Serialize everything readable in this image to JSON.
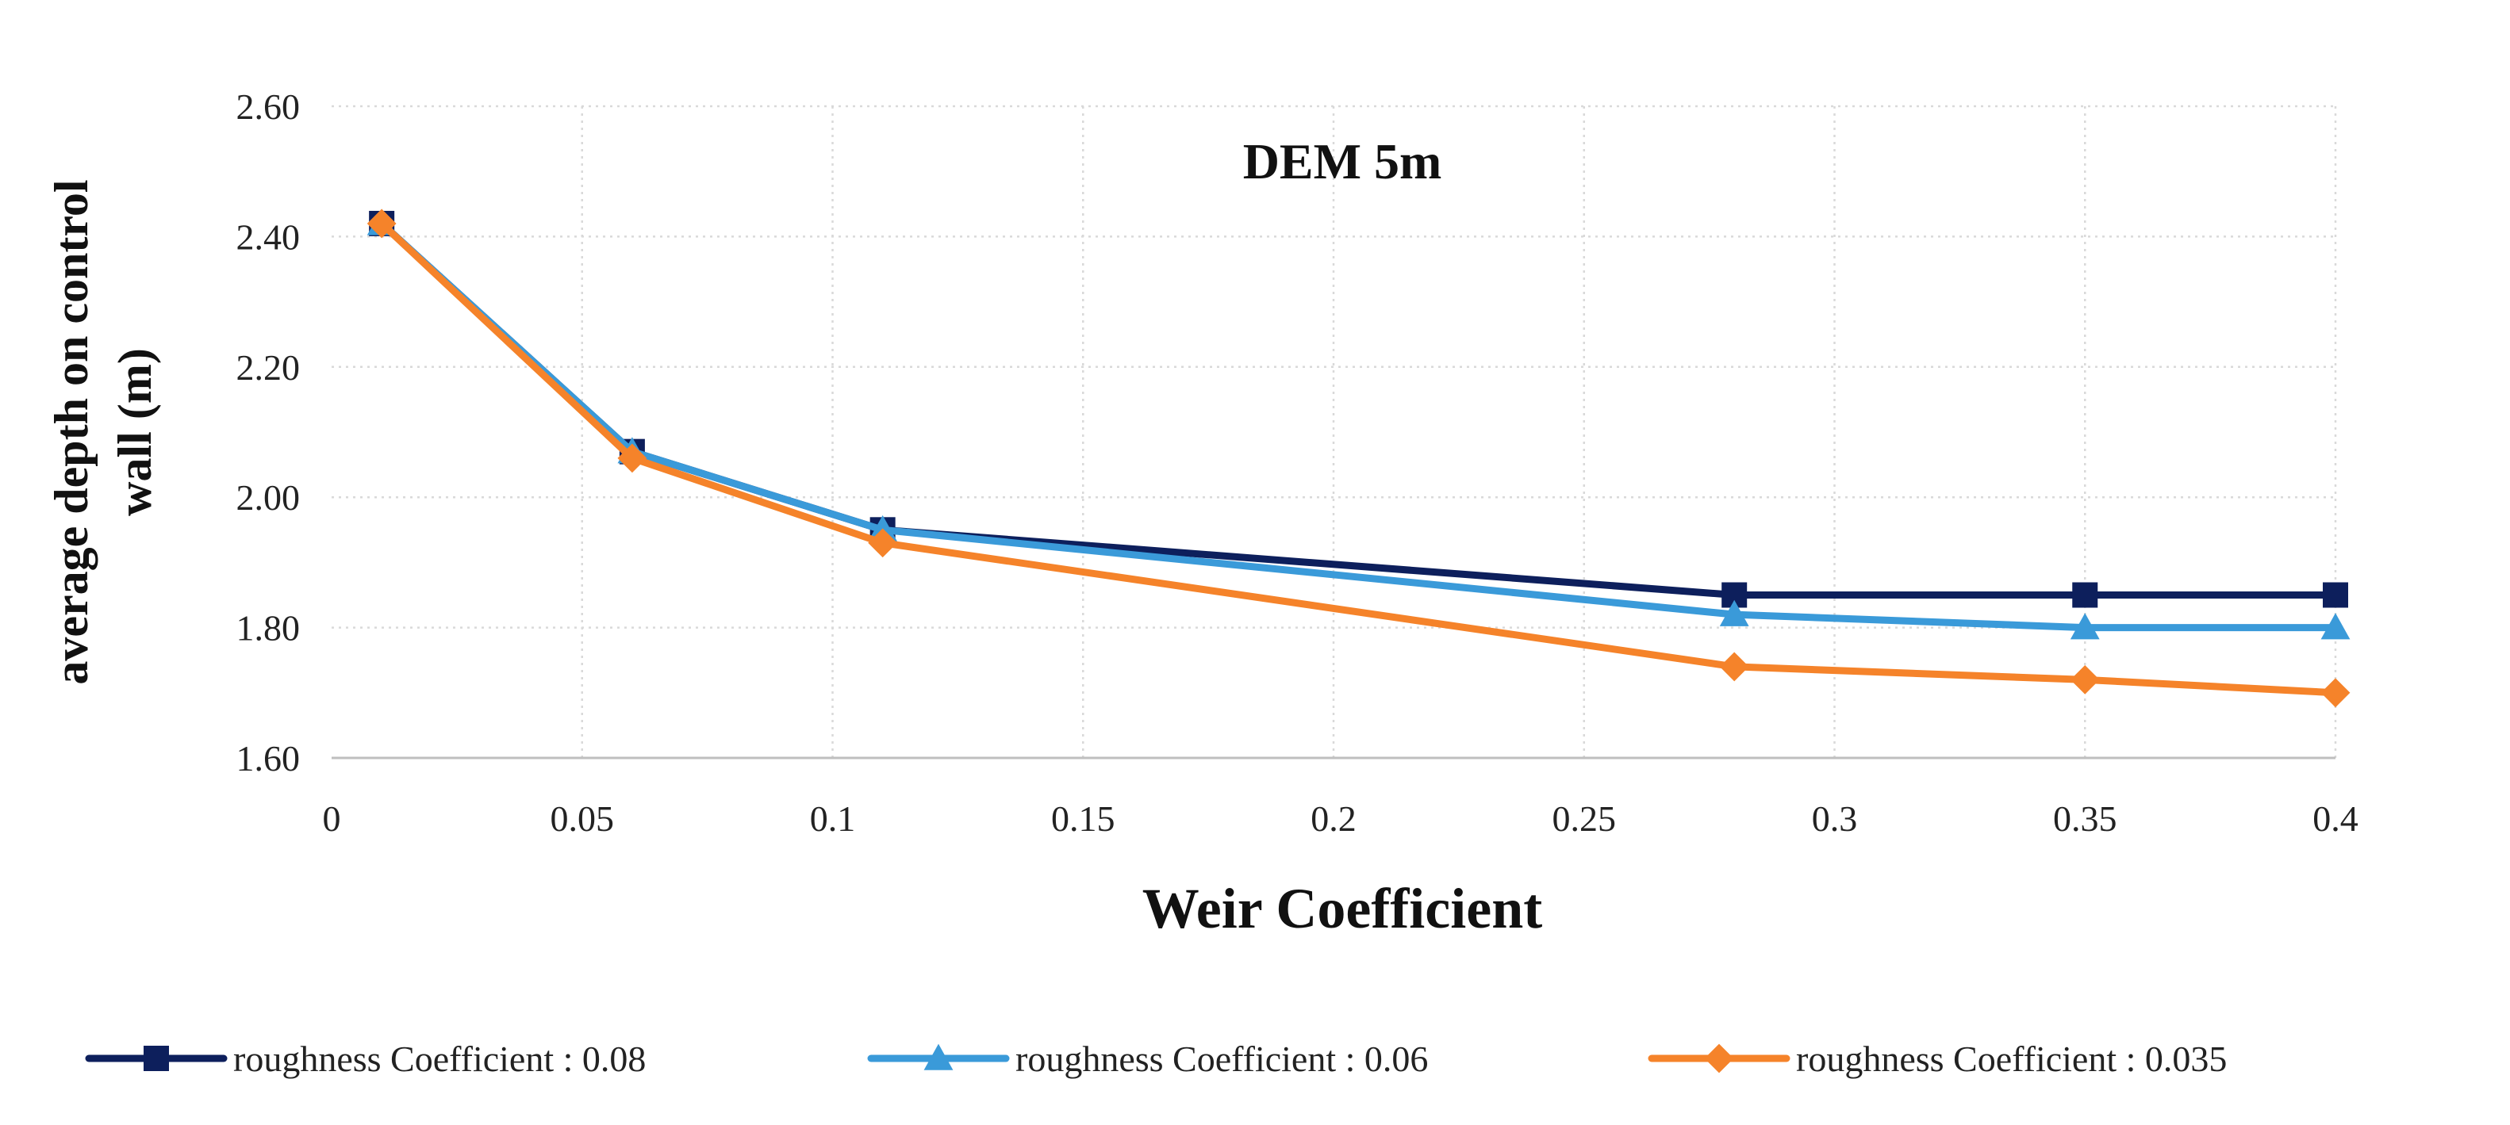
{
  "chart_data": {
    "type": "line",
    "title": "DEM 5m",
    "xlabel": "Weir Coefficient",
    "ylabel_lines": [
      "average  depth  on  control",
      "wall  (m)"
    ],
    "xlim": [
      0,
      0.4
    ],
    "ylim": [
      1.6,
      2.6
    ],
    "xticks": [
      0,
      0.05,
      0.1,
      0.15,
      0.2,
      0.25,
      0.3,
      0.35,
      0.4
    ],
    "xtick_labels": [
      "0",
      "0.05",
      "0.1",
      "0.15",
      "0.2",
      "0.25",
      "0.3",
      "0.35",
      "0.4"
    ],
    "yticks": [
      1.6,
      1.8,
      2.0,
      2.2,
      2.4,
      2.6
    ],
    "ytick_labels": [
      "1.60",
      "1.80",
      "2.00",
      "2.20",
      "2.40",
      "2.60"
    ],
    "grid": true,
    "legend_position": "bottom",
    "x": [
      0.01,
      0.06,
      0.11,
      0.28,
      0.35,
      0.4
    ],
    "series": [
      {
        "name": "roughness Coefficient : 0.08",
        "marker": "square",
        "color": "#0d1f5c",
        "values": [
          2.42,
          2.07,
          1.95,
          1.85,
          1.85,
          1.85
        ]
      },
      {
        "name": "roughness Coefficient : 0.06",
        "marker": "triangle",
        "color": "#3a9ad9",
        "values": [
          2.42,
          2.07,
          1.95,
          1.82,
          1.8,
          1.8
        ]
      },
      {
        "name": "roughness Coefficient : 0.035",
        "marker": "diamond",
        "color": "#f5832a",
        "values": [
          2.42,
          2.06,
          1.93,
          1.74,
          1.72,
          1.7
        ]
      }
    ]
  }
}
